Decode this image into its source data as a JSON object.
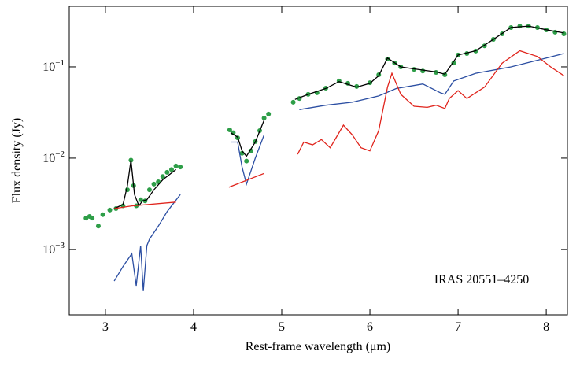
{
  "chart_data": {
    "type": "line",
    "log_y": true,
    "xlabel": "Rest-frame wavelength (μm)",
    "ylabel": "Flux density (Jy)",
    "annotation": "IRAS 20551–4250",
    "xlim": [
      2.59,
      8.24
    ],
    "ylim": [
      0.000192,
      0.461
    ],
    "xticks": [
      3,
      4,
      5,
      6,
      7,
      8
    ],
    "yticks": [
      {
        "value": 0.001,
        "label": "10",
        "exponent": "−3"
      },
      {
        "value": 0.01,
        "label": "10",
        "exponent": "−2"
      },
      {
        "value": 0.1,
        "label": "10",
        "exponent": "−1"
      }
    ],
    "series": [
      {
        "style": "points",
        "color": "#2e9e48",
        "x": [
          2.78,
          2.82,
          2.85,
          2.92,
          2.97,
          3.05,
          3.12,
          3.2,
          3.25,
          3.29,
          3.32,
          3.35,
          3.4,
          3.45,
          3.5,
          3.55,
          3.6,
          3.65,
          3.7,
          3.75,
          3.8,
          3.85,
          4.41,
          4.45,
          4.5,
          4.55,
          4.6,
          4.65,
          4.7,
          4.75,
          4.8,
          4.85,
          5.13,
          5.2,
          5.3,
          5.4,
          5.5,
          5.65,
          5.75,
          5.85,
          6.0,
          6.1,
          6.2,
          6.28,
          6.35,
          6.5,
          6.6,
          6.75,
          6.85,
          6.95,
          7.0,
          7.1,
          7.2,
          7.3,
          7.4,
          7.5,
          7.6,
          7.7,
          7.8,
          7.9,
          8.0,
          8.1,
          8.2
        ],
        "values": [
          0.0022,
          0.0023,
          0.0022,
          0.0018,
          0.0024,
          0.0027,
          0.0028,
          0.003,
          0.0045,
          0.0095,
          0.005,
          0.003,
          0.0035,
          0.0034,
          0.0045,
          0.0052,
          0.0055,
          0.0063,
          0.007,
          0.0075,
          0.0082,
          0.008,
          0.0204,
          0.019,
          0.0167,
          0.0113,
          0.0093,
          0.012,
          0.0152,
          0.02,
          0.0275,
          0.0304,
          0.041,
          0.045,
          0.05,
          0.052,
          0.0585,
          0.07,
          0.066,
          0.061,
          0.067,
          0.082,
          0.122,
          0.11,
          0.1,
          0.094,
          0.09,
          0.087,
          0.082,
          0.11,
          0.135,
          0.14,
          0.149,
          0.17,
          0.2,
          0.23,
          0.27,
          0.28,
          0.28,
          0.27,
          0.254,
          0.24,
          0.23
        ]
      },
      {
        "style": "line",
        "color": "#000000",
        "x": [
          3.1,
          3.2,
          3.25,
          3.29,
          3.33,
          3.38,
          3.42,
          3.47,
          3.55,
          3.65,
          3.8,
          null,
          4.42,
          4.5,
          4.55,
          4.6,
          4.7,
          4.8,
          null,
          5.15,
          5.3,
          5.5,
          5.65,
          5.85,
          6.0,
          6.1,
          6.2,
          6.35,
          6.5,
          6.75,
          6.85,
          7.0,
          7.2,
          7.4,
          7.6,
          7.8,
          8.0,
          8.2
        ],
        "values": [
          0.0028,
          0.0031,
          0.005,
          0.0095,
          0.004,
          0.003,
          0.0034,
          0.0035,
          0.0045,
          0.0058,
          0.0075,
          null,
          0.019,
          0.017,
          0.012,
          0.0105,
          0.015,
          0.026,
          null,
          0.044,
          0.05,
          0.058,
          0.069,
          0.06,
          0.066,
          0.08,
          0.125,
          0.1,
          0.095,
          0.088,
          0.083,
          0.135,
          0.15,
          0.2,
          0.27,
          0.28,
          0.255,
          0.235
        ]
      },
      {
        "style": "line",
        "color": "#2b4ea2",
        "x": [
          3.1,
          3.2,
          3.3,
          3.35,
          3.4,
          3.43,
          3.47,
          3.5,
          3.6,
          3.7,
          3.85,
          null,
          4.42,
          4.5,
          4.55,
          4.6,
          4.7,
          4.8,
          null,
          5.2,
          5.5,
          5.8,
          6.1,
          6.3,
          6.6,
          6.8,
          6.85,
          6.95,
          7.2,
          7.6,
          8.0,
          8.2
        ],
        "values": [
          0.00045,
          0.00065,
          0.0009,
          0.0004,
          0.0011,
          0.00035,
          0.0011,
          0.0013,
          0.0018,
          0.0026,
          0.004,
          null,
          0.015,
          0.015,
          0.008,
          0.0052,
          0.01,
          0.018,
          null,
          0.034,
          0.038,
          0.041,
          0.048,
          0.058,
          0.065,
          0.052,
          0.05,
          0.07,
          0.085,
          0.1,
          0.125,
          0.14
        ]
      },
      {
        "style": "line",
        "color": "#e0241c",
        "x": [
          3.1,
          3.3,
          3.8,
          null,
          4.4,
          4.8,
          null,
          5.18,
          5.25,
          5.35,
          5.45,
          5.55,
          5.7,
          5.8,
          5.9,
          6.0,
          6.1,
          6.2,
          6.25,
          6.35,
          6.5,
          6.65,
          6.75,
          6.85,
          6.9,
          7.0,
          7.1,
          7.3,
          7.5,
          7.7,
          7.9,
          8.05,
          8.2
        ],
        "values": [
          0.0028,
          0.003,
          0.0033,
          null,
          0.0048,
          0.0068,
          null,
          0.011,
          0.015,
          0.014,
          0.016,
          0.013,
          0.023,
          0.018,
          0.013,
          0.012,
          0.02,
          0.06,
          0.085,
          0.05,
          0.037,
          0.036,
          0.038,
          0.035,
          0.045,
          0.055,
          0.045,
          0.06,
          0.11,
          0.15,
          0.13,
          0.1,
          0.08
        ]
      }
    ]
  }
}
